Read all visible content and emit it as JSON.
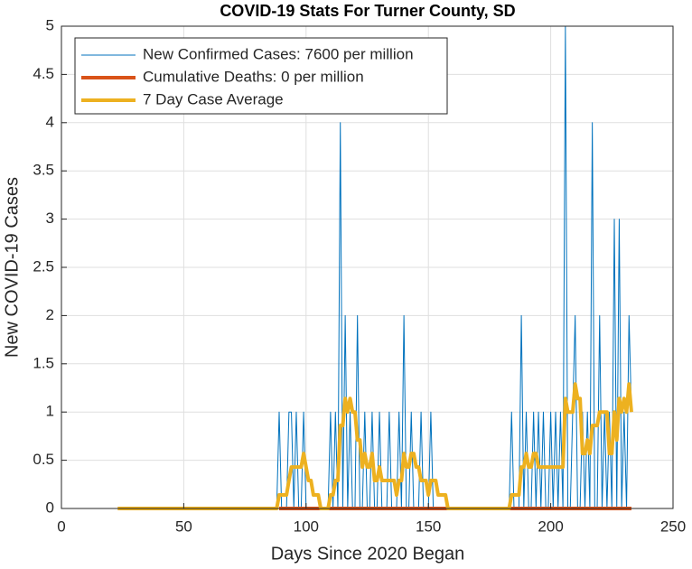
{
  "chart_data": {
    "type": "line",
    "title": "COVID-19 Stats For Turner County, SD",
    "xlabel": "Days Since 2020 Began",
    "ylabel": "New COVID-19 Cases",
    "xlim": [
      0,
      250
    ],
    "xticks": [
      0,
      50,
      100,
      150,
      200,
      250
    ],
    "ylim": [
      0,
      5
    ],
    "yticks": [
      0,
      0.5,
      1,
      1.5,
      2,
      2.5,
      3,
      3.5,
      4,
      4.5,
      5
    ],
    "grid": true,
    "legend": "northwest",
    "x": [
      23,
      24,
      25,
      26,
      27,
      28,
      29,
      30,
      31,
      32,
      33,
      34,
      35,
      36,
      37,
      38,
      39,
      40,
      41,
      42,
      43,
      44,
      45,
      46,
      47,
      48,
      49,
      50,
      51,
      52,
      53,
      54,
      55,
      56,
      57,
      58,
      59,
      60,
      61,
      62,
      63,
      64,
      65,
      66,
      67,
      68,
      69,
      70,
      71,
      72,
      73,
      74,
      75,
      76,
      77,
      78,
      79,
      80,
      81,
      82,
      83,
      84,
      85,
      86,
      87,
      88,
      89,
      90,
      91,
      92,
      93,
      94,
      95,
      96,
      97,
      98,
      99,
      100,
      101,
      102,
      103,
      104,
      105,
      106,
      107,
      108,
      109,
      110,
      111,
      112,
      113,
      114,
      115,
      116,
      117,
      118,
      119,
      120,
      121,
      122,
      123,
      124,
      125,
      126,
      127,
      128,
      129,
      130,
      131,
      132,
      133,
      134,
      135,
      136,
      137,
      138,
      139,
      140,
      141,
      142,
      143,
      144,
      145,
      146,
      147,
      148,
      149,
      150,
      151,
      152,
      153,
      154,
      155,
      156,
      157,
      158,
      159,
      160,
      161,
      162,
      163,
      164,
      165,
      166,
      167,
      168,
      169,
      170,
      171,
      172,
      173,
      174,
      175,
      176,
      177,
      178,
      179,
      180,
      181,
      182,
      183,
      184,
      185,
      186,
      187,
      188,
      189,
      190,
      191,
      192,
      193,
      194,
      195,
      196,
      197,
      198,
      199,
      200,
      201,
      202,
      203,
      204,
      205,
      206,
      207,
      208,
      209,
      210,
      211,
      212,
      213,
      214,
      215,
      216,
      217,
      218,
      219,
      220,
      221,
      222,
      223,
      224,
      225,
      226,
      227,
      228,
      229,
      230,
      231,
      232,
      233
    ],
    "series": [
      {
        "name": "New Confirmed Cases: 7600 per million",
        "color": "#0072bd",
        "width": 1,
        "values": [
          0,
          0,
          0,
          0,
          0,
          0,
          0,
          0,
          0,
          0,
          0,
          0,
          0,
          0,
          0,
          0,
          0,
          0,
          0,
          0,
          0,
          0,
          0,
          0,
          0,
          0,
          0,
          0,
          0,
          0,
          0,
          0,
          0,
          0,
          0,
          0,
          0,
          0,
          0,
          0,
          0,
          0,
          0,
          0,
          0,
          0,
          0,
          0,
          0,
          0,
          0,
          0,
          0,
          0,
          0,
          0,
          0,
          0,
          0,
          0,
          0,
          0,
          0,
          0,
          0,
          0,
          1,
          0,
          0,
          0,
          1,
          1,
          0,
          1,
          0,
          0,
          1,
          0,
          0,
          0,
          0,
          0,
          0,
          0,
          0,
          0,
          0,
          1,
          0,
          1,
          0,
          4,
          0,
          2,
          0,
          1,
          0,
          0,
          2,
          0,
          0,
          1,
          0,
          0,
          1,
          0,
          0,
          1,
          0,
          0,
          0,
          1,
          0,
          0,
          0,
          1,
          0,
          2,
          0,
          0,
          1,
          0,
          0,
          0,
          1,
          0,
          0,
          0,
          1,
          0,
          0,
          0,
          0,
          0,
          0,
          0,
          0,
          0,
          0,
          0,
          0,
          0,
          0,
          0,
          0,
          0,
          0,
          0,
          0,
          0,
          0,
          0,
          0,
          0,
          0,
          0,
          0,
          0,
          0,
          0,
          0,
          1,
          0,
          0,
          0,
          2,
          0,
          1,
          0,
          0,
          1,
          0,
          1,
          0,
          1,
          0,
          0,
          1,
          0,
          1,
          0,
          1,
          0,
          5,
          0,
          0,
          1,
          2,
          0,
          0,
          1,
          0,
          1,
          0,
          4,
          0,
          0,
          2,
          0,
          1,
          0,
          1,
          0,
          3,
          0,
          3,
          0,
          1,
          0,
          2,
          1
        ]
      },
      {
        "name": "Cumulative Deaths: 0 per million",
        "color": "#d95319",
        "width": 4,
        "values": [
          null,
          null,
          null,
          null,
          null,
          null,
          null,
          null,
          null,
          null,
          null,
          null,
          null,
          null,
          null,
          null,
          null,
          null,
          null,
          null,
          null,
          null,
          null,
          null,
          null,
          null,
          null,
          null,
          null,
          null,
          null,
          null,
          null,
          null,
          null,
          null,
          null,
          null,
          null,
          null,
          null,
          null,
          null,
          null,
          null,
          null,
          null,
          null,
          null,
          null,
          null,
          null,
          null,
          null,
          null,
          null,
          null,
          null,
          null,
          null,
          null,
          null,
          null,
          null,
          null,
          null,
          0,
          0,
          0,
          0,
          0,
          0,
          0,
          0,
          0,
          0,
          0,
          0,
          0,
          0,
          0,
          0,
          0,
          0,
          0,
          0,
          0,
          0,
          0,
          0,
          0,
          0,
          0,
          0,
          0,
          0,
          0,
          0,
          0,
          0,
          0,
          0,
          0,
          0,
          0,
          0,
          0,
          0,
          0,
          0,
          0,
          0,
          0,
          0,
          0,
          0,
          0,
          0,
          0,
          0,
          0,
          0,
          0,
          0,
          0,
          0,
          0,
          0,
          0,
          0,
          0,
          0,
          0,
          0,
          0,
          0,
          0,
          0,
          0,
          0,
          0,
          0,
          0,
          0,
          0,
          0,
          0,
          0,
          0,
          0,
          0,
          0,
          0,
          0,
          0,
          0,
          0,
          0,
          0,
          0,
          0,
          0,
          0,
          0,
          0,
          0,
          0,
          0,
          0,
          0,
          0,
          0,
          0,
          0,
          0,
          0,
          0,
          0,
          0,
          0,
          0,
          0,
          0,
          0,
          0,
          0,
          0,
          0,
          0,
          0,
          0,
          0,
          0,
          0,
          0,
          0,
          0,
          0,
          0,
          0,
          0,
          0,
          0,
          0,
          0,
          0,
          0,
          0,
          0,
          0,
          0
        ]
      },
      {
        "name": "7 Day Case Average",
        "color": "#edb120",
        "width": 4,
        "values": [
          0,
          0,
          0,
          0,
          0,
          0,
          0,
          0,
          0,
          0,
          0,
          0,
          0,
          0,
          0,
          0,
          0,
          0,
          0,
          0,
          0,
          0,
          0,
          0,
          0,
          0,
          0,
          0,
          0,
          0,
          0,
          0,
          0,
          0,
          0,
          0,
          0,
          0,
          0,
          0,
          0,
          0,
          0,
          0,
          0,
          0,
          0,
          0,
          0,
          0,
          0,
          0,
          0,
          0,
          0,
          0,
          0,
          0,
          0,
          0,
          0,
          0,
          0,
          0,
          0,
          0,
          0.14,
          0.14,
          0.14,
          0.14,
          0.29,
          0.43,
          0.43,
          0.43,
          0.43,
          0.43,
          0.57,
          0.43,
          0.29,
          0.29,
          0.14,
          0.14,
          0.14,
          0,
          0,
          0,
          0,
          0.14,
          0.14,
          0.29,
          0.29,
          0.86,
          0.86,
          1.14,
          1,
          1.14,
          1,
          1,
          0.71,
          0.71,
          0.43,
          0.57,
          0.43,
          0.43,
          0.57,
          0.29,
          0.29,
          0.43,
          0.29,
          0.29,
          0.29,
          0.29,
          0.29,
          0.29,
          0.14,
          0.29,
          0.29,
          0.57,
          0.43,
          0.43,
          0.57,
          0.57,
          0.43,
          0.43,
          0.29,
          0.29,
          0.29,
          0.14,
          0.29,
          0.29,
          0.29,
          0.14,
          0.14,
          0.14,
          0.14,
          0,
          0,
          0,
          0,
          0,
          0,
          0,
          0,
          0,
          0,
          0,
          0,
          0,
          0,
          0,
          0,
          0,
          0,
          0,
          0,
          0,
          0,
          0,
          0,
          0,
          0,
          0.14,
          0.14,
          0.14,
          0.14,
          0.43,
          0.43,
          0.57,
          0.43,
          0.43,
          0.57,
          0.57,
          0.43,
          0.43,
          0.43,
          0.43,
          0.43,
          0.43,
          0.43,
          0.43,
          0.43,
          0.43,
          0.43,
          1.14,
          1,
          1,
          1,
          1.29,
          1.14,
          1.14,
          0.57,
          0.57,
          0.71,
          0.57,
          0.86,
          0.86,
          0.86,
          1,
          1,
          1,
          1,
          0.57,
          0.57,
          1,
          0.71,
          1.14,
          1,
          1.14,
          1,
          1.29,
          1
        ]
      }
    ]
  }
}
